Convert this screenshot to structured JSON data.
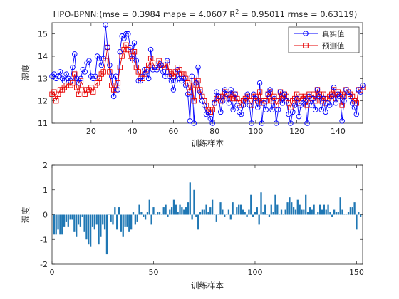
{
  "chart_data": [
    {
      "type": "line",
      "title_prefix": "HPO-BPNN:(mse = 0.3984 mape = 4.0607  R",
      "title_sup": "2",
      "title_suffix": " = 0.95011 rmse = 0.63119)",
      "xlabel": "训练样本",
      "ylabel": "湿度",
      "xlim": [
        1,
        152
      ],
      "ylim": [
        11,
        15.5
      ],
      "xticks": [
        20,
        40,
        60,
        80,
        100,
        120,
        140
      ],
      "yticks": [
        11,
        12,
        13,
        14,
        15
      ],
      "legend_position": "top-right",
      "colors": {
        "actual": "#0000ff",
        "predicted": "#e60000"
      },
      "series": [
        {
          "name": "真实值",
          "marker": "circle",
          "values": [
            13.1,
            13.2,
            13.0,
            13.1,
            13.3,
            13.0,
            12.9,
            13.2,
            13.0,
            12.9,
            13.5,
            14.1,
            13.0,
            12.8,
            13.0,
            13.4,
            13.3,
            13.7,
            13.8,
            13.1,
            13.0,
            13.1,
            14.0,
            13.9,
            13.6,
            13.9,
            15.4,
            14.4,
            13.6,
            13.1,
            12.2,
            13.1,
            12.5,
            14.2,
            14.9,
            14.8,
            15.0,
            15.0,
            14.4,
            13.9,
            14.6,
            13.8,
            12.9,
            12.9,
            13.1,
            13.4,
            13.3,
            13.0,
            14.3,
            13.4,
            13.5,
            13.4,
            13.7,
            13.6,
            13.3,
            13.1,
            13.8,
            13.1,
            12.9,
            12.5,
            12.9,
            13.4,
            13.0,
            12.9,
            13.0,
            12.7,
            12.3,
            11.1,
            13.1,
            11.0,
            12.8,
            13.5,
            12.4,
            12.0,
            11.8,
            11.4,
            11.5,
            11.2,
            11.0,
            11.9,
            12.4,
            12.2,
            11.5,
            12.0,
            12.5,
            12.3,
            11.9,
            12.5,
            11.6,
            12.3,
            11.8,
            11.5,
            11.4,
            11.8,
            12.0,
            12.3,
            11.8,
            11.0,
            12.3,
            12.1,
            11.7,
            12.8,
            11.0,
            11.9,
            11.6,
            12.3,
            12.5,
            11.6,
            12.1,
            11.0,
            11.6,
            12.4,
            11.9,
            12.3,
            12.0,
            11.4,
            11.0,
            11.5,
            11.8,
            12.1,
            11.3,
            11.8,
            11.9,
            12.0,
            11.0,
            12.2,
            11.8,
            12.1,
            11.6,
            12.5,
            12.2,
            11.6,
            12.1,
            11.5,
            11.9,
            11.8,
            12.2,
            12.6,
            11.9,
            12.3,
            12.2,
            11.1,
            12.0,
            12.5,
            12.4,
            12.2,
            11.9,
            11.7,
            11.4,
            12.5,
            12.4,
            12.7
          ]
        },
        {
          "name": "预测值",
          "marker": "square",
          "values": [
            12.3,
            12.4,
            12.0,
            12.3,
            12.5,
            12.5,
            12.6,
            12.7,
            12.8,
            12.7,
            12.8,
            13.2,
            12.6,
            12.3,
            12.9,
            12.7,
            12.3,
            12.5,
            12.5,
            12.6,
            12.4,
            12.7,
            12.8,
            13.0,
            13.2,
            13.3,
            13.8,
            14.4,
            13.3,
            12.7,
            12.5,
            12.5,
            12.8,
            13.5,
            14.0,
            14.3,
            14.5,
            14.3,
            13.8,
            14.0,
            14.2,
            13.5,
            13.3,
            13.0,
            13.0,
            13.2,
            13.4,
            13.6,
            13.9,
            13.7,
            13.5,
            13.5,
            13.8,
            13.6,
            13.6,
            13.5,
            13.7,
            13.3,
            13.2,
            13.1,
            13.3,
            13.5,
            13.4,
            13.2,
            13.2,
            13.0,
            12.8,
            12.4,
            12.9,
            12.0,
            12.7,
            12.9,
            12.5,
            12.2,
            12.0,
            11.8,
            11.6,
            11.5,
            11.6,
            11.9,
            12.1,
            12.2,
            12.0,
            12.2,
            12.4,
            12.3,
            12.1,
            12.3,
            12.1,
            12.3,
            12.1,
            11.9,
            11.8,
            12.0,
            12.1,
            12.2,
            12.0,
            11.8,
            12.2,
            12.2,
            12.0,
            12.4,
            11.9,
            12.0,
            12.0,
            12.3,
            12.4,
            12.0,
            12.2,
            11.8,
            12.0,
            12.4,
            12.1,
            12.3,
            12.2,
            11.9,
            11.7,
            12.0,
            12.1,
            12.3,
            11.9,
            12.2,
            12.1,
            12.2,
            11.8,
            12.3,
            12.1,
            12.3,
            12.0,
            12.5,
            12.3,
            12.0,
            12.3,
            11.9,
            12.1,
            12.2,
            12.3,
            12.5,
            12.1,
            12.4,
            12.3,
            11.8,
            12.2,
            12.5,
            12.4,
            12.3,
            12.2,
            12.0,
            11.9,
            12.5,
            12.5,
            12.6
          ]
        }
      ]
    },
    {
      "type": "bar",
      "xlabel": "训练样本",
      "ylabel": "湿度",
      "xlim": [
        0,
        153
      ],
      "ylim": [
        -2,
        2
      ],
      "xticks": [
        0,
        50,
        100,
        150
      ],
      "yticks": [
        -2,
        -1,
        0,
        1,
        2
      ],
      "color": "#1f77b4",
      "values": [
        -0.8,
        -0.8,
        -0.6,
        -0.8,
        -0.8,
        -0.5,
        -0.3,
        -0.5,
        -0.2,
        -0.2,
        -0.7,
        -0.9,
        -0.4,
        -0.5,
        -0.1,
        -0.7,
        -1.0,
        -1.2,
        -1.3,
        -0.5,
        -0.6,
        -0.4,
        -1.2,
        -0.9,
        -0.4,
        -0.6,
        -1.6,
        -0.0,
        -0.3,
        -0.4,
        0.3,
        -0.6,
        0.3,
        -0.7,
        -0.9,
        -0.5,
        -0.5,
        -0.7,
        -0.6,
        0.1,
        -0.4,
        -0.3,
        0.4,
        0.1,
        -0.1,
        -0.2,
        0.1,
        0.6,
        -0.4,
        0.3,
        0.0,
        0.1,
        0.1,
        0.0,
        0.3,
        0.4,
        -0.1,
        0.2,
        0.3,
        0.6,
        0.4,
        0.1,
        0.4,
        0.3,
        0.2,
        0.3,
        0.5,
        1.3,
        -0.2,
        1.0,
        -0.1,
        -0.6,
        0.1,
        0.2,
        0.2,
        0.4,
        0.1,
        0.3,
        0.6,
        0.0,
        -0.3,
        0.0,
        0.5,
        0.2,
        -0.1,
        0.0,
        0.2,
        -0.2,
        0.5,
        0.0,
        0.3,
        0.4,
        0.4,
        0.2,
        0.1,
        -0.1,
        0.2,
        0.8,
        -0.1,
        0.1,
        0.3,
        -0.4,
        0.9,
        0.1,
        0.4,
        0.0,
        -0.1,
        0.4,
        0.1,
        0.8,
        0.4,
        0.0,
        0.2,
        0.0,
        0.2,
        0.5,
        0.7,
        0.5,
        0.3,
        0.2,
        0.6,
        0.4,
        0.2,
        0.2,
        0.8,
        0.1,
        0.3,
        0.2,
        0.4,
        0.0,
        0.1,
        0.4,
        0.2,
        0.4,
        0.2,
        0.4,
        0.1,
        -0.1,
        0.2,
        0.1,
        0.1,
        0.7,
        0.2,
        0.0,
        0.0,
        0.1,
        0.3,
        0.3,
        0.5,
        -0.6,
        0.1,
        -0.1
      ]
    }
  ]
}
